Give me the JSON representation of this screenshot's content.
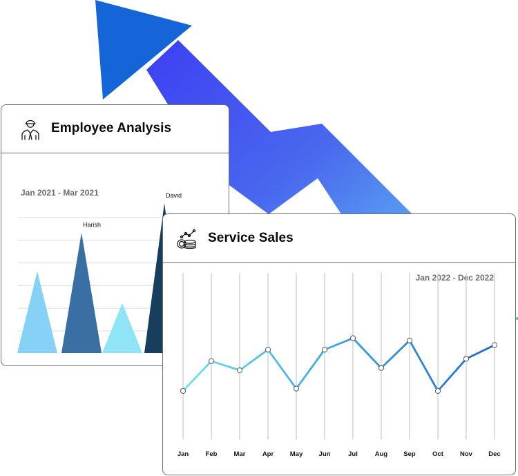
{
  "colors": {
    "arrow_head": "#1466d8",
    "arrow_gradient": [
      "#3d3ff2",
      "#4968ee",
      "#5fb2f2"
    ],
    "card_border": "#6d6d6d",
    "line_gradient": [
      "#6fe3ee",
      "#3aa3e3",
      "#1f6ac8"
    ]
  },
  "employee_card": {
    "title": "Employee Analysis",
    "icon": "employee-icon",
    "date_range": "Jan 2021 - Mar 2021"
  },
  "sales_card": {
    "title": "Service Sales",
    "icon": "coins-chart-icon",
    "date_range": "Jan 2022 - Dec 2022"
  },
  "chart_data": [
    {
      "type": "bar",
      "bar_shape": "triangle",
      "categories": [
        "",
        "Harish",
        "",
        "David"
      ],
      "values": [
        36,
        53,
        22,
        66
      ],
      "colors": [
        "#86d1f6",
        "#3a6fa3",
        "#8fe4f6",
        "#173e5c"
      ],
      "ylim": [
        0,
        66
      ],
      "grid": true
    },
    {
      "type": "line",
      "categories": [
        "Jan",
        "Feb",
        "Mar",
        "Apr",
        "May",
        "Jun",
        "Jul",
        "Aug",
        "Sep",
        "Oct",
        "Nov",
        "Dec"
      ],
      "series": [
        {
          "values": [
            41,
            54,
            50,
            59,
            42,
            59,
            64,
            51,
            63,
            41,
            55,
            61
          ]
        }
      ],
      "ylim": [
        0,
        100
      ],
      "grid": true
    }
  ]
}
